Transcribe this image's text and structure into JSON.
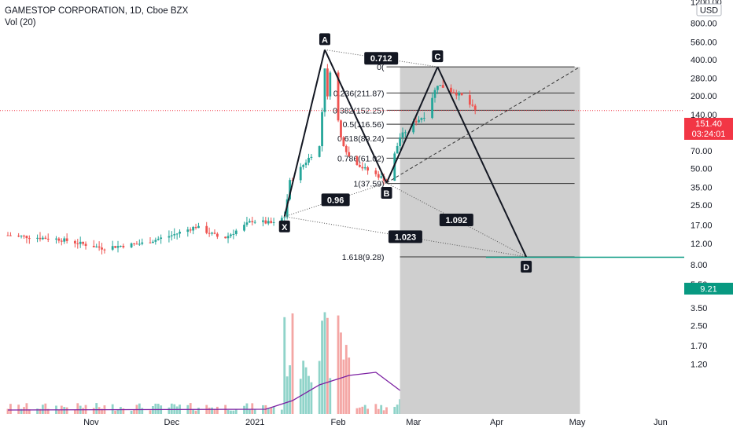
{
  "header": {
    "symbol_line": "GAMESTOP CORPORATION, 1D, Cboe BZX",
    "volume_line": "Vol (20)"
  },
  "price_scale": {
    "currency": "USD",
    "current_price": "151.40",
    "countdown": "03:24:01",
    "target_price": "9.21",
    "price_color": "#f23645",
    "target_color": "#089981"
  },
  "chart_data": {
    "type": "candlestick",
    "title": "GAMESTOP CORPORATION, 1D, Cboe BZX",
    "y_scale": "log",
    "y_ticks": [
      "1200.00",
      "800.00",
      "560.00",
      "400.00",
      "280.00",
      "200.00",
      "140.00",
      "100.00",
      "70.00",
      "50.00",
      "35.00",
      "25.00",
      "17.00",
      "12.00",
      "8.00",
      "5.50",
      "3.50",
      "2.50",
      "1.70",
      "1.20"
    ],
    "x_ticks": [
      "Nov",
      "Dec",
      "2021",
      "Feb",
      "Mar",
      "Apr",
      "May",
      "Jun",
      "Ju"
    ],
    "up_color": "#26a69a",
    "down_color": "#ef5350",
    "volume_up_color": "#8fd3c9",
    "volume_down_color": "#f4a6a4",
    "volume_ma_color": "#7b1fa2",
    "harmonic_pattern": {
      "points": [
        {
          "label": "X",
          "date": "2021-01-12",
          "price": 20.0
        },
        {
          "label": "A",
          "date": "2021-01-27",
          "price": 483.0
        },
        {
          "label": "B",
          "date": "2021-02-19",
          "price": 38.0
        },
        {
          "label": "C",
          "date": "2021-03-10",
          "price": 348.5
        },
        {
          "label": "D",
          "date": "2021-04-12",
          "price": 9.28
        }
      ],
      "ratios": [
        "0.712",
        "0.96",
        "1.092",
        "1.023"
      ]
    },
    "fib_levels": [
      {
        "label": "0(",
        "price": 348.5
      },
      {
        "label": "0.236(211.87)",
        "price": 211.87
      },
      {
        "label": "0.382(152.25)",
        "price": 152.25
      },
      {
        "label": "0.5(116.56)",
        "price": 116.56
      },
      {
        "label": "0.618(89.24)",
        "price": 89.24
      },
      {
        "label": "0.786(61.02)",
        "price": 61.02
      },
      {
        "label": "1(37.59)",
        "price": 37.59
      },
      {
        "label": "1.618(9.28)",
        "price": 9.28
      }
    ]
  }
}
